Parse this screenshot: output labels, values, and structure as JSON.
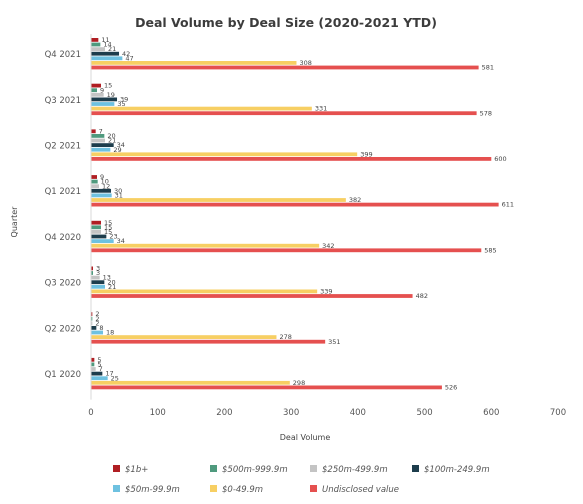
{
  "chart_data": {
    "type": "bar",
    "orientation": "horizontal",
    "title": "Deal Volume by Deal Size (2020-2021 YTD)",
    "xlabel": "Deal Volume",
    "ylabel": "Quarter",
    "xlim": [
      0,
      700
    ],
    "xticks": [
      0,
      100,
      200,
      300,
      400,
      500,
      600,
      700
    ],
    "grid": false,
    "legend_position": "bottom",
    "categories": [
      "Q4 2021",
      "Q3 2021",
      "Q2 2021",
      "Q1 2021",
      "Q4 2020",
      "Q3 2020",
      "Q2 2020",
      "Q1 2020"
    ],
    "series": [
      {
        "name": "$1b+",
        "color": "#b01e23",
        "values": [
          11,
          15,
          7,
          9,
          15,
          3,
          2,
          5
        ]
      },
      {
        "name": "$500m-999.9m",
        "color": "#4f9a7e",
        "values": [
          14,
          9,
          20,
          10,
          15,
          3,
          2,
          5
        ]
      },
      {
        "name": "$250m-499.9m",
        "color": "#c4c4c4",
        "values": [
          21,
          19,
          21,
          12,
          15,
          13,
          2,
          7
        ]
      },
      {
        "name": "$100m-249.9m",
        "color": "#1d3d4c",
        "values": [
          42,
          39,
          34,
          30,
          23,
          20,
          8,
          17
        ]
      },
      {
        "name": "$50m-99.9m",
        "color": "#6ec1e0",
        "values": [
          47,
          35,
          29,
          31,
          34,
          21,
          18,
          25
        ]
      },
      {
        "name": "$0-49.9m",
        "color": "#f7cf63",
        "values": [
          308,
          331,
          399,
          382,
          342,
          339,
          278,
          298
        ]
      },
      {
        "name": "Undisclosed value",
        "color": "#e5504f",
        "values": [
          581,
          578,
          600,
          611,
          585,
          482,
          351,
          526
        ]
      }
    ]
  }
}
